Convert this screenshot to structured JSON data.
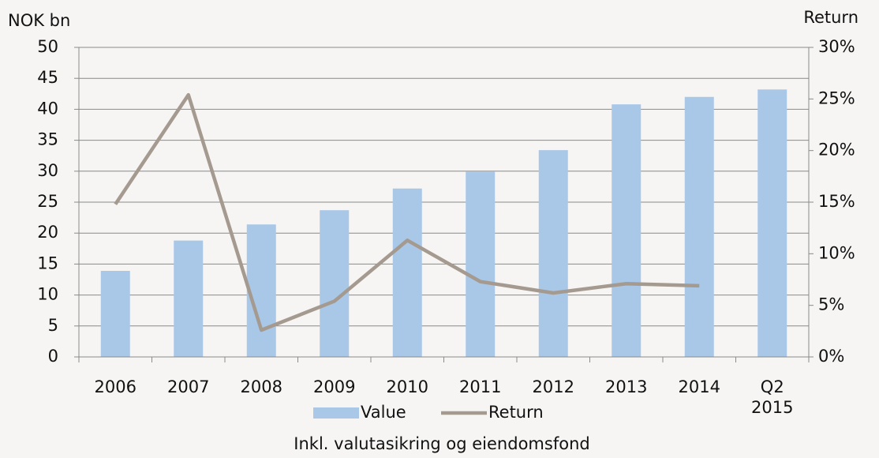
{
  "chart_data": {
    "type": "bar",
    "y_label": "NOK bn",
    "y2_label": "Return",
    "caption": "Inkl. valutasikring og eiendomsfond",
    "categories": [
      "2006",
      "2007",
      "2008",
      "2009",
      "2010",
      "2011",
      "2012",
      "2013",
      "2014",
      "Q2 2015"
    ],
    "series": [
      {
        "name": "Value",
        "type": "bar",
        "color": "#a9c8e8",
        "values": [
          13.9,
          18.8,
          21.4,
          23.7,
          27.2,
          29.9,
          33.4,
          40.8,
          42.0,
          43.2
        ]
      },
      {
        "name": "Return",
        "type": "line",
        "axis": "y2",
        "color": "#a59a8f",
        "values": [
          14.8,
          25.4,
          2.6,
          5.4,
          11.3,
          7.3,
          6.2,
          7.1,
          6.9,
          null
        ]
      }
    ],
    "ylim": [
      0,
      50
    ],
    "yticks": [
      0,
      5,
      10,
      15,
      20,
      25,
      30,
      35,
      40,
      45,
      50
    ],
    "y2lim": [
      0,
      30
    ],
    "y2ticks": [
      {
        "value": 0,
        "label": "0%"
      },
      {
        "value": 5,
        "label": "5%"
      },
      {
        "value": 10,
        "label": "10%"
      },
      {
        "value": 15,
        "label": "15%"
      },
      {
        "value": 20,
        "label": "20%"
      },
      {
        "value": 25,
        "label": "25%"
      },
      {
        "value": 30,
        "label": "30%"
      }
    ],
    "grid": true,
    "legend": "bottom"
  }
}
